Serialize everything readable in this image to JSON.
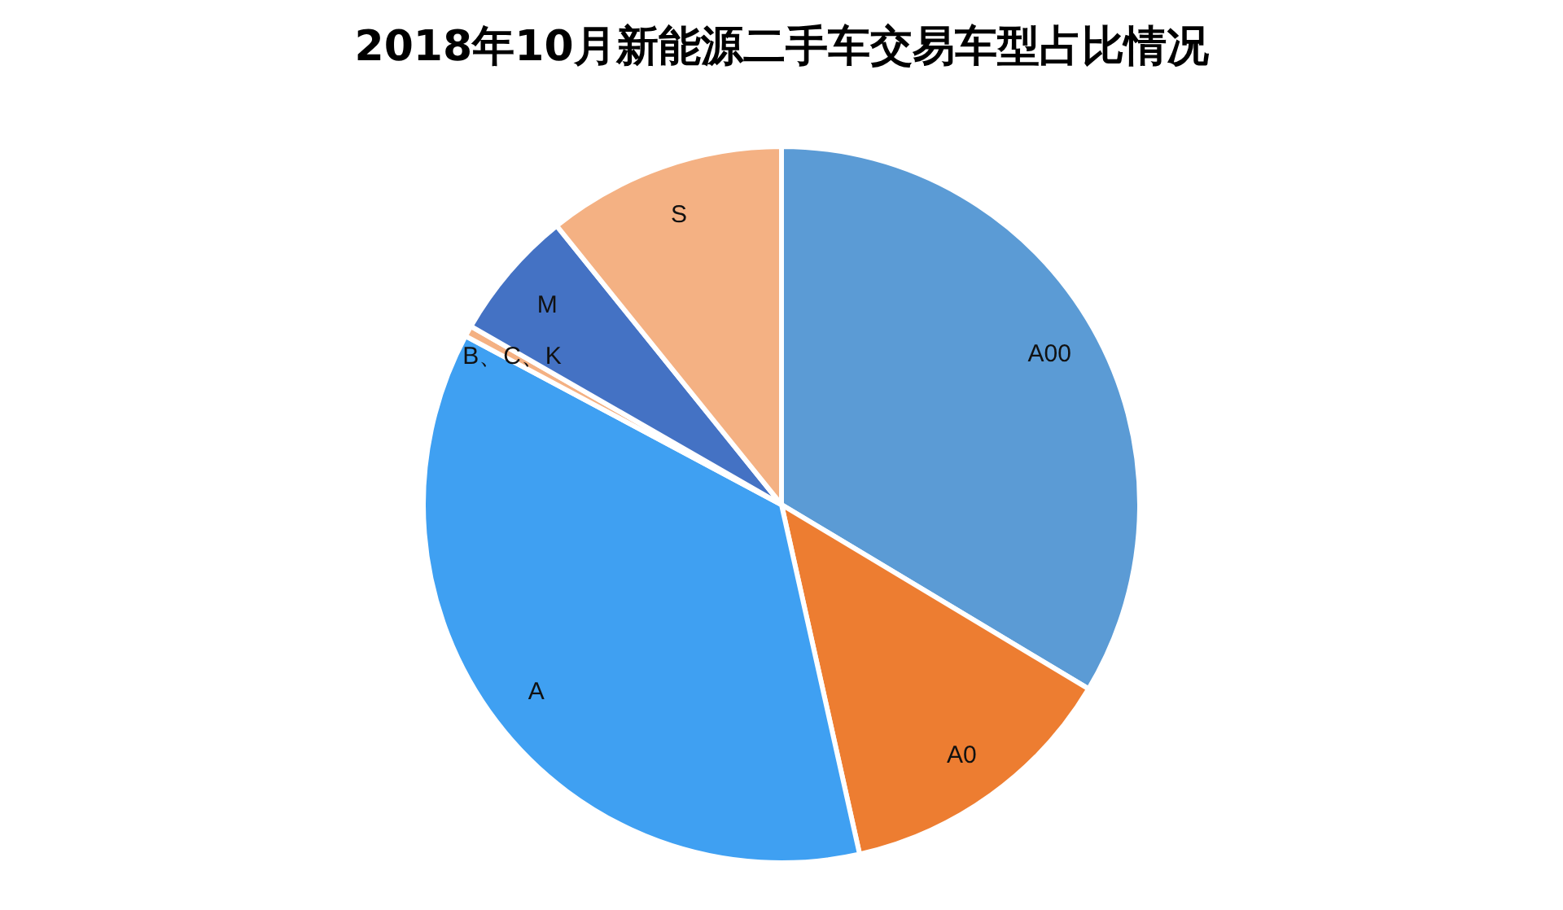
{
  "chart_data": {
    "type": "pie",
    "title": "2018年10月新能源二手车交易车型占比情况",
    "categories": [
      "A00",
      "A0",
      "A",
      "B、C、K",
      "M",
      "S"
    ],
    "values": [
      33.6,
      12.9,
      36.3,
      0.5,
      5.9,
      10.8
    ],
    "colors": [
      "#5b9bd5",
      "#ed7d31",
      "#3fa0f2",
      "#f4b183",
      "#4472c4",
      "#f4b183"
    ],
    "legend": false
  }
}
